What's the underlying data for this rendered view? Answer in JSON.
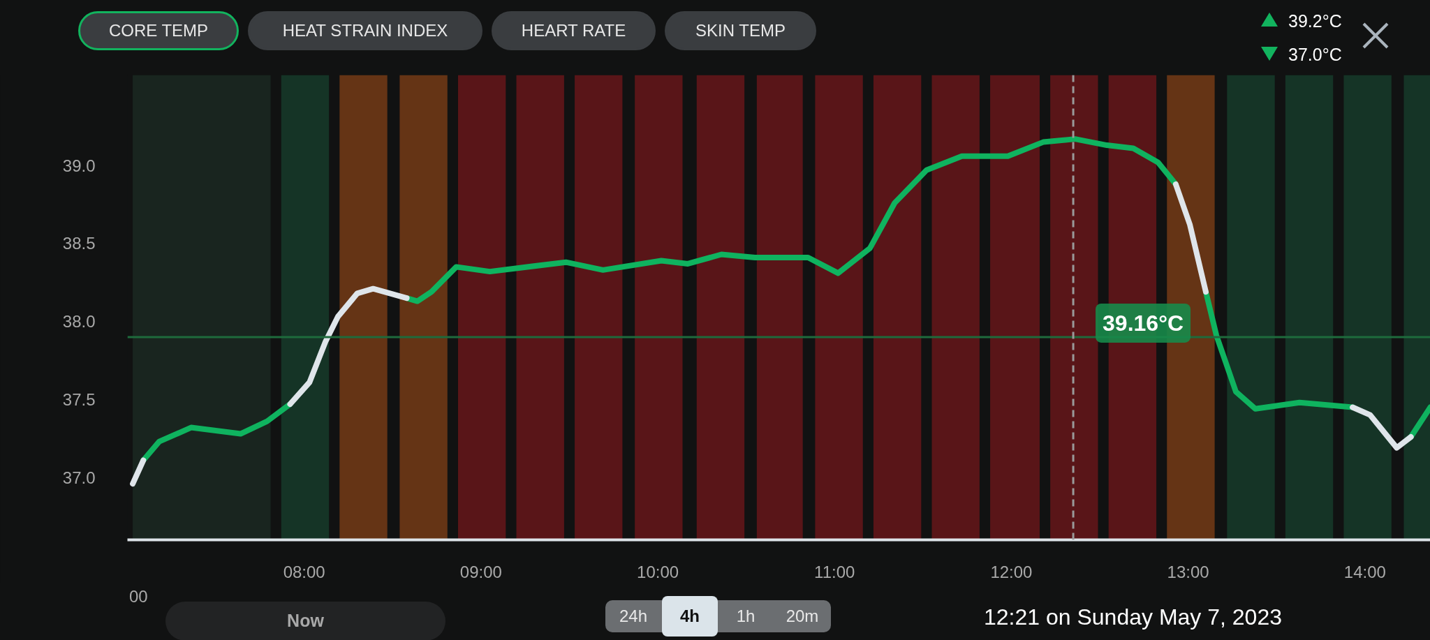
{
  "chart_data": {
    "type": "line",
    "x": [
      7.03,
      7.09,
      7.18,
      7.36,
      7.64,
      7.79,
      7.92,
      8.03,
      8.12,
      8.19,
      8.3,
      8.39,
      8.58,
      8.64,
      8.72,
      8.86,
      9.05,
      9.48,
      9.69,
      10.02,
      10.17,
      10.36,
      10.55,
      10.85,
      11.02,
      11.2,
      11.34,
      11.52,
      11.72,
      11.98,
      12.18,
      12.36,
      12.54,
      12.69,
      12.83,
      12.93,
      13.01,
      13.1,
      13.16,
      13.27,
      13.38,
      13.63,
      13.93,
      14.03,
      14.18,
      14.26,
      14.37
    ],
    "series": [
      {
        "color": "#0fb35f",
        "values": [
          null,
          37.11,
          37.23,
          37.32,
          37.28,
          37.36,
          37.47,
          null,
          null,
          null,
          null,
          null,
          38.15,
          38.13,
          38.19,
          38.35,
          38.32,
          38.38,
          38.33,
          38.39,
          38.37,
          38.43,
          38.41,
          38.41,
          38.31,
          38.47,
          38.76,
          38.97,
          39.06,
          39.06,
          39.15,
          39.17,
          39.13,
          39.11,
          39.02,
          38.88,
          null,
          38.19,
          37.91,
          37.55,
          37.44,
          37.48,
          37.45,
          null,
          null,
          37.26,
          37.45
        ]
      },
      {
        "color": "#dfe5ea",
        "values": [
          36.96,
          37.11,
          null,
          null,
          null,
          null,
          37.47,
          37.61,
          37.87,
          38.03,
          38.18,
          38.21,
          38.15,
          null,
          null,
          null,
          null,
          null,
          null,
          null,
          null,
          null,
          null,
          null,
          null,
          null,
          null,
          null,
          null,
          null,
          null,
          null,
          null,
          null,
          null,
          38.88,
          38.62,
          38.19,
          null,
          null,
          null,
          null,
          37.45,
          37.4,
          37.19,
          37.26,
          null
        ]
      }
    ],
    "xlim": [
      7.0,
      14.37
    ],
    "ylim": [
      36.6,
      39.58
    ],
    "xticks": [
      {
        "value": 8,
        "label": "08:00"
      },
      {
        "value": 9,
        "label": "09:00"
      },
      {
        "value": 10,
        "label": "10:00"
      },
      {
        "value": 11,
        "label": "11:00"
      },
      {
        "value": 12,
        "label": "12:00"
      },
      {
        "value": 13,
        "label": "13:00"
      },
      {
        "value": 14,
        "label": "14:00"
      }
    ],
    "yticks": [
      {
        "value": 37,
        "label": "37.0"
      },
      {
        "value": 37.5,
        "label": "37.5"
      },
      {
        "value": 38,
        "label": "38.0"
      },
      {
        "value": 38.5,
        "label": "38.5"
      },
      {
        "value": 39,
        "label": "39.0"
      }
    ],
    "ref_lines": [
      {
        "axis": "y",
        "value": 37.9,
        "color": "#1e6b3c",
        "line_style": "solid"
      },
      {
        "axis": "x",
        "value": 12.35,
        "color": "#9a9a9a",
        "line_style": "dashed"
      }
    ],
    "bands": [
      {
        "axis": "x",
        "from": 7.03,
        "to": 7.81,
        "color": "#1b2a23"
      },
      {
        "axis": "x",
        "from": 7.87,
        "to": 8.14,
        "color": "#173d2c"
      },
      {
        "axis": "x",
        "from": 8.2,
        "to": 8.47,
        "color": "#7a3d17"
      },
      {
        "axis": "x",
        "from": 8.54,
        "to": 8.81,
        "color": "#7a3d17"
      },
      {
        "axis": "x",
        "from": 8.87,
        "to": 9.14,
        "color": "#6b171a"
      },
      {
        "axis": "x",
        "from": 9.2,
        "to": 9.47,
        "color": "#6b171a"
      },
      {
        "axis": "x",
        "from": 9.53,
        "to": 9.8,
        "color": "#6b171a"
      },
      {
        "axis": "x",
        "from": 9.87,
        "to": 10.14,
        "color": "#6b171a"
      },
      {
        "axis": "x",
        "from": 10.22,
        "to": 10.49,
        "color": "#6b171a"
      },
      {
        "axis": "x",
        "from": 10.56,
        "to": 10.82,
        "color": "#6b171a"
      },
      {
        "axis": "x",
        "from": 10.89,
        "to": 11.16,
        "color": "#6b171a"
      },
      {
        "axis": "x",
        "from": 11.22,
        "to": 11.49,
        "color": "#6b171a"
      },
      {
        "axis": "x",
        "from": 11.55,
        "to": 11.82,
        "color": "#6b171a"
      },
      {
        "axis": "x",
        "from": 11.88,
        "to": 12.16,
        "color": "#6b171a"
      },
      {
        "axis": "x",
        "from": 12.22,
        "to": 12.49,
        "color": "#6b171a"
      },
      {
        "axis": "x",
        "from": 12.55,
        "to": 12.82,
        "color": "#6b171a"
      },
      {
        "axis": "x",
        "from": 12.88,
        "to": 13.15,
        "color": "#7a3d17"
      },
      {
        "axis": "x",
        "from": 13.22,
        "to": 13.49,
        "color": "#173d2c"
      },
      {
        "axis": "x",
        "from": 13.55,
        "to": 13.82,
        "color": "#173d2c"
      },
      {
        "axis": "x",
        "from": 13.88,
        "to": 14.15,
        "color": "#173d2c"
      },
      {
        "axis": "x",
        "from": 14.22,
        "to": 14.37,
        "color": "#173d2c"
      }
    ],
    "annotations": [
      "CORE TEMP",
      "HEAT STRAIN INDEX",
      "HEART RATE",
      "SKIN TEMP",
      "39.2°C",
      "37.0°C",
      "Now",
      "24h",
      "4h",
      "1h",
      "20m",
      "12:21 on Sunday May 7, 2023",
      "39.16°C",
      "00"
    ]
  }
}
